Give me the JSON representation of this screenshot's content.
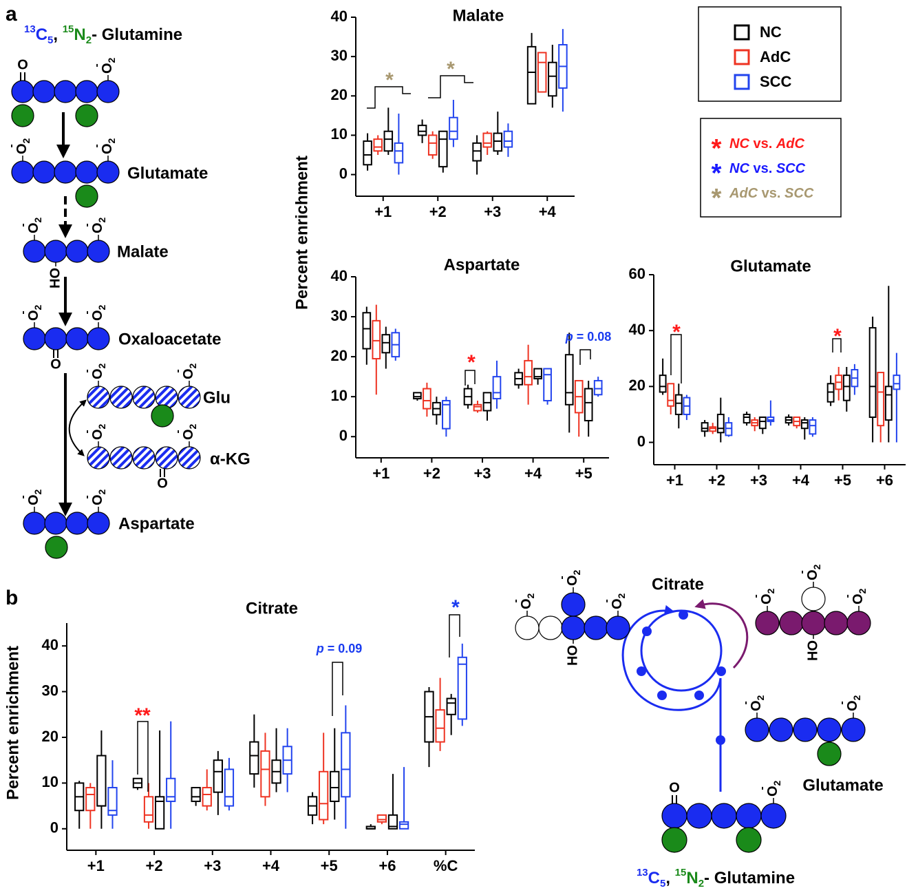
{
  "panels": [
    "a",
    "b"
  ],
  "legend": {
    "series": [
      {
        "name": "NC",
        "color": "#000000"
      },
      {
        "name": "AdC",
        "color": "#ee3322"
      },
      {
        "name": "SCC",
        "color": "#2244ee"
      }
    ],
    "star": "*",
    "comparisons": [
      {
        "parts": [
          "NC",
          " vs. ",
          "AdC"
        ],
        "color": "#ff1a1a"
      },
      {
        "parts": [
          "NC",
          " vs. ",
          "SCC"
        ],
        "color": "#1a1aff"
      },
      {
        "parts": [
          "AdC",
          " vs. ",
          "SCC"
        ],
        "color": "#a89870"
      }
    ]
  },
  "chart_data": [
    {
      "type": "box",
      "title": "Malate",
      "categories": [
        "+1",
        "+2",
        "+3",
        "+4"
      ],
      "ylim": [
        -5.5,
        40
      ],
      "yticks": [
        0,
        10,
        20,
        30,
        40
      ],
      "series": [
        {
          "color": "#000000",
          "values": [
            [
              1,
              2.5,
              5,
              8.5,
              10.5
            ],
            [
              8,
              10,
              11,
              12.5,
              14
            ],
            [
              0,
              3.5,
              6,
              8,
              10
            ],
            [
              18,
              18,
              26,
              32.5,
              36
            ]
          ]
        },
        {
          "color": "#ee3322",
          "values": [
            [
              5,
              6,
              7,
              9,
              10
            ],
            [
              4,
              5,
              8,
              10,
              11
            ],
            [
              5,
              7,
              8,
              10.5,
              11
            ],
            [
              21,
              21,
              28.5,
              31,
              31
            ]
          ]
        },
        {
          "color": "#000000",
          "values": [
            [
              5,
              6,
              9,
              11,
              17
            ],
            [
              0.5,
              2,
              9,
              11,
              11
            ],
            [
              5,
              6,
              8.5,
              10.5,
              16
            ],
            [
              17,
              20,
              25,
              28.5,
              33
            ]
          ]
        },
        {
          "color": "#2244ee",
          "values": [
            [
              0,
              3,
              6,
              8,
              15.5
            ],
            [
              7,
              9,
              11,
              14.5,
              19
            ],
            [
              4.5,
              7,
              8.5,
              11,
              13
            ],
            [
              16,
              22,
              27.5,
              33,
              37
            ]
          ]
        }
      ],
      "annotations": [
        {
          "text": "*",
          "color": "#a89870"
        },
        {
          "text": "*",
          "color": "#a89870"
        }
      ]
    },
    {
      "type": "box",
      "title": "Aspartate",
      "ylabel": "Percent enrichment",
      "categories": [
        "+1",
        "+2",
        "+3",
        "+4",
        "+5"
      ],
      "ylim": [
        -5.3,
        40
      ],
      "yticks": [
        0,
        10,
        20,
        30,
        40
      ],
      "series": [
        {
          "color": "#000000",
          "values": [
            [
              18,
              22,
              27,
              31,
              32.5
            ],
            [
              9,
              9.5,
              10,
              11,
              11
            ],
            [
              7,
              8,
              10,
              12,
              13
            ],
            [
              12,
              13,
              14.5,
              16,
              17
            ],
            [
              1,
              8,
              11,
              20.5,
              26
            ]
          ]
        },
        {
          "color": "#ee3322",
          "values": [
            [
              10.5,
              19.5,
              24,
              29,
              33
            ],
            [
              5,
              7,
              9,
              12,
              13.5
            ],
            [
              6,
              6.5,
              7.5,
              8,
              9
            ],
            [
              8,
              13,
              15,
              19,
              23
            ],
            [
              0,
              6,
              10,
              14,
              14
            ]
          ]
        },
        {
          "color": "#000000",
          "values": [
            [
              17,
              21,
              23.5,
              25.5,
              27.5
            ],
            [
              3,
              5.5,
              7,
              8.5,
              10
            ],
            [
              4,
              6.5,
              8.5,
              11,
              11
            ],
            [
              13,
              14.5,
              15,
              17,
              17
            ],
            [
              0,
              4,
              8.5,
              12,
              14
            ]
          ]
        },
        {
          "color": "#2244ee",
          "values": [
            [
              19,
              20,
              23,
              26,
              27
            ],
            [
              0,
              2,
              8,
              9,
              10
            ],
            [
              7,
              9.5,
              11,
              15,
              19
            ],
            [
              8,
              9,
              15.5,
              17,
              17
            ],
            [
              10,
              10.5,
              12,
              14,
              15
            ]
          ]
        }
      ],
      "annotations": [
        {
          "text": "*",
          "color": "#ff1a1a"
        },
        {
          "parts": [
            "p",
            " = 0.08"
          ],
          "color": "#1a3cf0"
        }
      ]
    },
    {
      "type": "box",
      "title": "Glutamate",
      "categories": [
        "+1",
        "+2",
        "+3",
        "+4",
        "+5",
        "+6"
      ],
      "ylim": [
        -8,
        60
      ],
      "yticks": [
        0,
        20,
        40,
        60
      ],
      "series": [
        {
          "color": "#000000",
          "values": [
            [
              17,
              18,
              20,
              24,
              30
            ],
            [
              2,
              4,
              5,
              7,
              8
            ],
            [
              6,
              7,
              9,
              10,
              11
            ],
            [
              6,
              7,
              8,
              9,
              10
            ],
            [
              13,
              14.5,
              18,
              21,
              24
            ],
            [
              0,
              9,
              20,
              41,
              45
            ]
          ]
        },
        {
          "color": "#ee3322",
          "values": [
            [
              10,
              13,
              15,
              21,
              21
            ],
            [
              3,
              4,
              5,
              5.5,
              7
            ],
            [
              4,
              6,
              7,
              8,
              9
            ],
            [
              5,
              6,
              7.5,
              9,
              9
            ],
            [
              15,
              19,
              21.5,
              24,
              27
            ],
            [
              0,
              6,
              18,
              25,
              25
            ]
          ]
        },
        {
          "color": "#000000",
          "values": [
            [
              5,
              10,
              14,
              17,
              21
            ],
            [
              0,
              3.5,
              5,
              10,
              16
            ],
            [
              3,
              5,
              7.5,
              9,
              9
            ],
            [
              1,
              5,
              7,
              8,
              9
            ],
            [
              11,
              15,
              20,
              24,
              27
            ],
            [
              0,
              8,
              17,
              20,
              56
            ]
          ]
        },
        {
          "color": "#2244ee",
          "values": [
            [
              8,
              10,
              13,
              16,
              17
            ],
            [
              2,
              2.5,
              5,
              7,
              9
            ],
            [
              6,
              7.5,
              8,
              9,
              15
            ],
            [
              2,
              3,
              6,
              8,
              9
            ],
            [
              17,
              20,
              23,
              26,
              28
            ],
            [
              0,
              19,
              21,
              24,
              32
            ]
          ]
        }
      ],
      "annotations": [
        {
          "text": "*",
          "color": "#ff1a1a"
        },
        {
          "text": "*",
          "color": "#ff1a1a"
        }
      ]
    },
    {
      "type": "box",
      "title": "Citrate",
      "ylabel": "Percent enrichment",
      "categories": [
        "+1",
        "+2",
        "+3",
        "+4",
        "+5",
        "+6",
        "%C"
      ],
      "ylim": [
        -4.7,
        45
      ],
      "yticks": [
        0,
        10,
        20,
        30,
        40
      ],
      "series": [
        {
          "color": "#000000",
          "values": [
            [
              0,
              4,
              7,
              10,
              10.5
            ],
            [
              8.5,
              9,
              10,
              11,
              11
            ],
            [
              5,
              6,
              7,
              9,
              9
            ],
            [
              9,
              12,
              16,
              19,
              25
            ],
            [
              1,
              3,
              5,
              7,
              8
            ],
            [
              0,
              0,
              0,
              0.5,
              1
            ],
            [
              13.5,
              19,
              24.5,
              30,
              31
            ]
          ]
        },
        {
          "color": "#ee3322",
          "values": [
            [
              0,
              4,
              7.5,
              9,
              10
            ],
            [
              0,
              1.5,
              3,
              7,
              10
            ],
            [
              4,
              5,
              7.5,
              9,
              13
            ],
            [
              5,
              7,
              13,
              17,
              21
            ],
            [
              1,
              2,
              5.5,
              12.5,
              21
            ],
            [
              1,
              1.5,
              2,
              3,
              3
            ],
            [
              17,
              19,
              22,
              26,
              33
            ]
          ]
        },
        {
          "color": "#000000",
          "values": [
            [
              0,
              5,
              5,
              16,
              21.5
            ],
            [
              0,
              0,
              6,
              7,
              21.5
            ],
            [
              3,
              8,
              12.5,
              15,
              17
            ],
            [
              8,
              10,
              12.5,
              15,
              22
            ],
            [
              2,
              6,
              9,
              12.5,
              22
            ],
            [
              0,
              0,
              0.5,
              3,
              12
            ],
            [
              20.5,
              25,
              27.5,
              28.5,
              29.5
            ]
          ]
        },
        {
          "color": "#2244ee",
          "values": [
            [
              0,
              3,
              4,
              9,
              15
            ],
            [
              0,
              6,
              7,
              11,
              23.5
            ],
            [
              4,
              5,
              7,
              13,
              15.5
            ],
            [
              8,
              12,
              15,
              18,
              22
            ],
            [
              0,
              7,
              13,
              21,
              27
            ],
            [
              0,
              0,
              1,
              1.5,
              13.5
            ],
            [
              22.5,
              24,
              36,
              37.5,
              40.5
            ]
          ]
        }
      ],
      "annotations": [
        {
          "text": "**",
          "color": "#ff1a1a"
        },
        {
          "parts": [
            "p",
            " = 0.09"
          ],
          "color": "#1a3cf0"
        },
        {
          "text": "*",
          "color": "#1a3cf0"
        }
      ]
    }
  ],
  "tracer": {
    "parts": [
      "13",
      "C",
      "5",
      ", ",
      "15",
      "N",
      "2",
      "- Glutamine"
    ]
  },
  "atoms": {
    "oxygen": "O",
    "sub": "2",
    "charge": "-",
    "hydroxyl": "HO"
  },
  "diagram_a": {
    "labels": [
      "Glutamate",
      "Malate",
      "Oxaloacetate",
      "Glu",
      "α-KG",
      "Aspartate"
    ]
  },
  "diagram_b": {
    "labels": [
      "Citrate",
      "Glutamate"
    ]
  }
}
